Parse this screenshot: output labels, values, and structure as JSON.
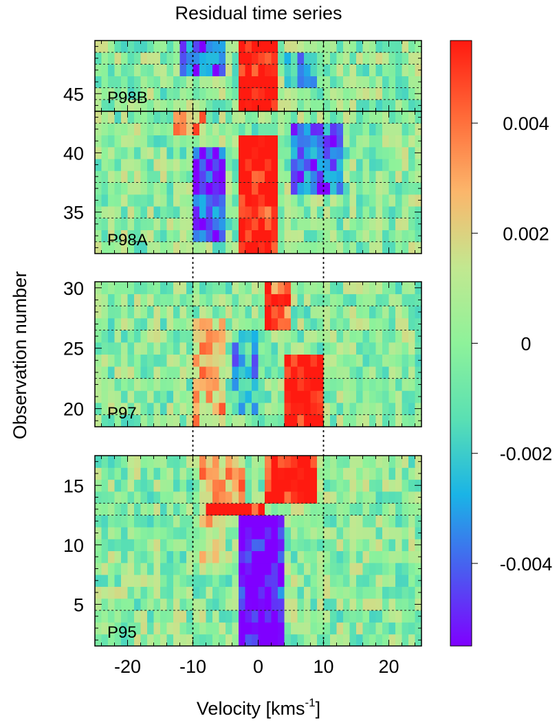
{
  "chart_data": {
    "type": "heatmap",
    "title": "Residual time series",
    "xlabel": "Velocity [kms",
    "xlabel_sup": "-1",
    "xlabel_tail": "]",
    "ylabel": "Observation number",
    "xlim": [
      -25,
      25
    ],
    "velocity_step": 1,
    "x_ticks": [
      -20,
      -10,
      0,
      10,
      20
    ],
    "x_tick_labels": [
      "-20",
      "-10",
      "0",
      "10",
      "20"
    ],
    "vertical_dotted_lines": [
      -10,
      10
    ],
    "colorbar": {
      "range": [
        -0.0055,
        0.0055
      ],
      "ticks": [
        0.004,
        0.002,
        0,
        -0.002,
        -0.004
      ],
      "tick_labels": [
        "0.004",
        "0.002",
        "0",
        "-0.002",
        "-0.004"
      ],
      "colors": [
        "#7f00ff",
        "#4a5cf0",
        "#1ab4e6",
        "#5ae0b3",
        "#8ef29a",
        "#c2e890",
        "#fbb66b",
        "#ff6a38",
        "#ff1a10"
      ]
    },
    "panels": [
      {
        "label": "P98B",
        "ylim": [
          43.5,
          49.5
        ],
        "y_ticks": [
          45
        ],
        "y_tick_labels": [
          "45"
        ],
        "session_breaks": [
          44.5,
          45.5,
          47.5,
          48.5
        ],
        "features": [
          {
            "v0": -3,
            "v1": 3,
            "o0": 44,
            "o1": 49,
            "amp": 0.006
          },
          {
            "v0": -12,
            "v1": -5,
            "o0": 47,
            "o1": 49,
            "amp": -0.004
          },
          {
            "v0": 4,
            "v1": 9,
            "o0": 46,
            "o1": 48,
            "amp": -0.0025
          }
        ]
      },
      {
        "label": "P98A",
        "ylim": [
          31.5,
          43.5
        ],
        "y_ticks": [
          35,
          40
        ],
        "y_tick_labels": [
          "35",
          "40"
        ],
        "session_breaks": [
          32.5,
          34.5,
          37.5,
          42.5
        ],
        "features": [
          {
            "v0": -3,
            "v1": 3,
            "o0": 32,
            "o1": 41,
            "amp": 0.006
          },
          {
            "v0": -10,
            "v1": -5,
            "o0": 33,
            "o1": 40,
            "amp": -0.0045
          },
          {
            "v0": 5,
            "v1": 13,
            "o0": 37,
            "o1": 42,
            "amp": -0.004
          },
          {
            "v0": -13,
            "v1": -8,
            "o0": 42,
            "o1": 43,
            "amp": 0.0035
          }
        ]
      },
      {
        "label": "P97",
        "ylim": [
          18.5,
          30.5
        ],
        "y_ticks": [
          20,
          25,
          30
        ],
        "y_tick_labels": [
          "20",
          "25",
          "30"
        ],
        "session_breaks": [
          19.5,
          22.5,
          26.5,
          28.5
        ],
        "features": [
          {
            "v0": 4,
            "v1": 10,
            "o0": 19,
            "o1": 24,
            "amp": 0.006
          },
          {
            "v0": 1,
            "v1": 5,
            "o0": 27,
            "o1": 30,
            "amp": 0.005
          },
          {
            "v0": -10,
            "v1": -5,
            "o0": 19,
            "o1": 27,
            "amp": 0.0025
          },
          {
            "v0": -4,
            "v1": 0,
            "o0": 20,
            "o1": 26,
            "amp": -0.0025
          }
        ]
      },
      {
        "label": "P95",
        "ylim": [
          1.5,
          17.5
        ],
        "y_ticks": [
          5,
          10,
          15
        ],
        "y_tick_labels": [
          "5",
          "10",
          "15"
        ],
        "session_breaks": [
          4.5,
          12.5,
          13.5
        ],
        "features": [
          {
            "v0": -3,
            "v1": 4,
            "o0": 2,
            "o1": 12,
            "amp": -0.0055
          },
          {
            "v0": 1,
            "v1": 9,
            "o0": 14,
            "o1": 17,
            "amp": 0.006
          },
          {
            "v0": -8,
            "v1": 1,
            "o0": 13,
            "o1": 13,
            "amp": 0.0055
          },
          {
            "v0": -9,
            "v1": -2,
            "o0": 13,
            "o1": 17,
            "amp": 0.003
          },
          {
            "v0": -9,
            "v1": -5,
            "o0": 9,
            "o1": 12,
            "amp": 0.002
          }
        ]
      }
    ]
  }
}
